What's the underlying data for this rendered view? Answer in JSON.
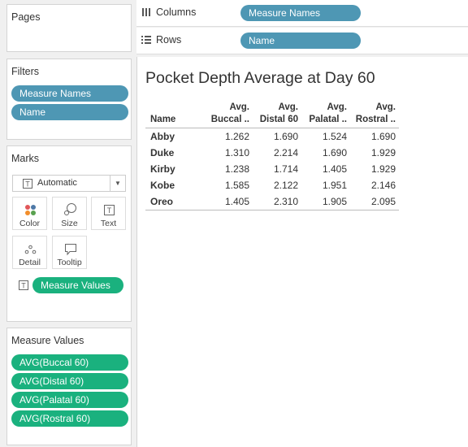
{
  "pages": {
    "title": "Pages"
  },
  "filters": {
    "title": "Filters",
    "pills": [
      "Measure Names",
      "Name"
    ]
  },
  "marks": {
    "title": "Marks",
    "type_select": "Automatic",
    "buttons": [
      "Color",
      "Size",
      "Text",
      "Detail",
      "Tooltip"
    ],
    "text_pill": "Measure Values"
  },
  "measure_values": {
    "title": "Measure Values",
    "pills": [
      "AVG(Buccal 60)",
      "AVG(Distal 60)",
      "AVG(Palatal 60)",
      "AVG(Rostral 60)"
    ]
  },
  "columns": {
    "label": "Columns",
    "pill": "Measure Names"
  },
  "rows": {
    "label": "Rows",
    "pill": "Name"
  },
  "view": {
    "title": "Pocket Depth Average at Day 60",
    "headers": {
      "name": "Name",
      "cols": [
        [
          "Avg.",
          "Buccal .."
        ],
        [
          "Avg.",
          "Distal 60"
        ],
        [
          "Avg.",
          "Palatal .."
        ],
        [
          "Avg.",
          "Rostral .."
        ]
      ]
    },
    "rows": [
      {
        "name": "Abby",
        "values": [
          "1.262",
          "1.690",
          "1.524",
          "1.690"
        ]
      },
      {
        "name": "Duke",
        "values": [
          "1.310",
          "2.214",
          "1.690",
          "1.929"
        ]
      },
      {
        "name": "Kirby",
        "values": [
          "1.238",
          "1.714",
          "1.405",
          "1.929"
        ]
      },
      {
        "name": "Kobe",
        "values": [
          "1.585",
          "2.122",
          "1.951",
          "2.146"
        ]
      },
      {
        "name": "Oreo",
        "values": [
          "1.405",
          "2.310",
          "1.905",
          "2.095"
        ]
      }
    ]
  }
}
